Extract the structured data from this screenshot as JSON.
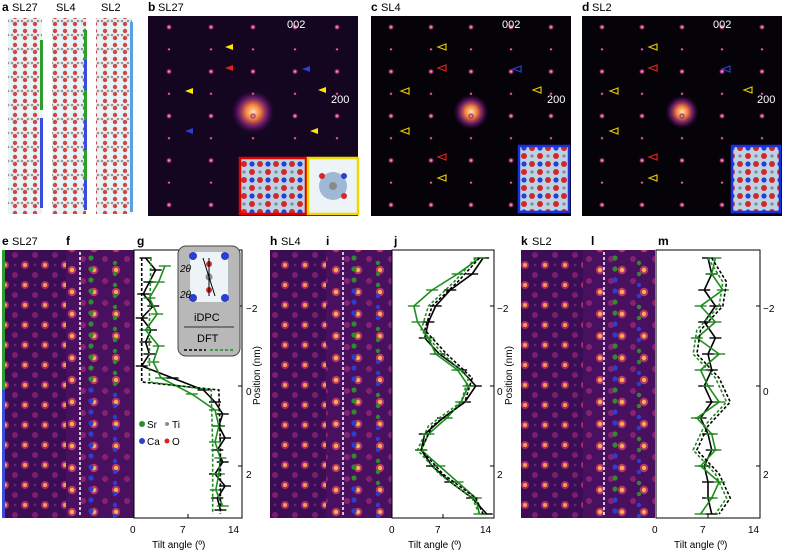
{
  "top_row": {
    "a": {
      "letter": "a",
      "models": [
        "SL27",
        "SL4",
        "SL2"
      ]
    },
    "b": {
      "letter": "b",
      "title": "SL27",
      "spot_002": "002",
      "spot_200": "200"
    },
    "c": {
      "letter": "c",
      "title": "SL4",
      "spot_002": "002",
      "spot_200": "200"
    },
    "d": {
      "letter": "d",
      "title": "SL2",
      "spot_002": "002",
      "spot_200": "200"
    }
  },
  "bottom_row": {
    "e": {
      "letter": "e",
      "title": "SL27"
    },
    "f": {
      "letter": "f"
    },
    "g": {
      "letter": "g"
    },
    "h": {
      "letter": "h",
      "title": "SL4"
    },
    "i": {
      "letter": "i"
    },
    "j": {
      "letter": "j"
    },
    "k": {
      "letter": "k",
      "title": "SL2"
    },
    "l": {
      "letter": "l"
    },
    "m": {
      "letter": "m"
    }
  },
  "inset": {
    "angle_label_1": "2θ",
    "angle_label_2": "2θ",
    "method_label": "iDPC",
    "dft_label": "DFT"
  },
  "legend_atoms": {
    "sr": "Sr",
    "ti": "Ti",
    "ca": "Ca",
    "o": "O",
    "colors": {
      "sr": "#2e8b2e",
      "ti": "#8c8c8c",
      "ca": "#2a3fd0",
      "o": "#e02020"
    }
  },
  "axes": {
    "y_label": "Position (nm)",
    "x_label": "Tilt angle (º)",
    "x_ticks": [
      "0",
      "7",
      "14"
    ],
    "y_ticks": [
      "−2",
      "0",
      "2"
    ]
  },
  "chart_data": [
    {
      "type": "line",
      "panel": "g",
      "xlabel": "Tilt angle (º)",
      "ylabel": "Position (nm)",
      "xlim": [
        0,
        14
      ],
      "ylim": [
        -3.4,
        3.3
      ],
      "series": [
        {
          "name": "iDPC",
          "color": "#000000",
          "style": "solid",
          "y": [
            -3.2,
            -2.9,
            -2.6,
            -2.3,
            -2.0,
            -1.7,
            -1.4,
            -1.1,
            -0.8,
            -0.5,
            -0.2,
            0.1,
            0.4,
            0.7,
            1.0,
            1.3,
            1.6,
            1.9,
            2.2,
            2.5,
            2.8,
            3.1
          ],
          "x": [
            1.5,
            2.8,
            2.0,
            1.2,
            2.5,
            1.0,
            2.2,
            1.5,
            2.0,
            1.0,
            5.0,
            9.0,
            10.5,
            11.5,
            11.0,
            11.8,
            10.8,
            11.5,
            10.5,
            11.8,
            10.8,
            11.2
          ]
        },
        {
          "name": "iDPC",
          "color": "#1e8c1e",
          "style": "solid",
          "y": [
            -3.0,
            -2.6,
            -2.2,
            -1.8,
            -1.4,
            -1.0,
            -0.6,
            -0.2,
            0.2,
            0.6,
            1.0,
            1.4,
            1.8,
            2.2,
            2.6,
            3.0
          ],
          "x": [
            4.0,
            3.2,
            2.0,
            3.0,
            1.5,
            3.2,
            2.5,
            3.5,
            7.5,
            10.5,
            11.0,
            10.5,
            11.2,
            11.0,
            10.6,
            11.5
          ]
        },
        {
          "name": "DFT",
          "color": "#000000",
          "style": "dashed",
          "y": [
            -3.2,
            -1.6,
            -0.1,
            0.1,
            1.5,
            3.2
          ],
          "x": [
            1.0,
            1.0,
            1.0,
            11.0,
            11.2,
            11.2
          ]
        },
        {
          "name": "DFT",
          "color": "#1e8c1e",
          "style": "dashed",
          "y": [
            -3.2,
            -1.6,
            -0.1,
            0.1,
            1.5,
            3.2
          ],
          "x": [
            2.2,
            2.0,
            2.0,
            10.0,
            10.2,
            10.2
          ]
        }
      ]
    },
    {
      "type": "line",
      "panel": "j",
      "xlabel": "Tilt angle (º)",
      "ylabel": "Position (nm)",
      "xlim": [
        0,
        14
      ],
      "ylim": [
        -3.4,
        3.3
      ],
      "series": [
        {
          "name": "iDPC",
          "color": "#000000",
          "style": "solid",
          "y": [
            -3.2,
            -2.8,
            -2.4,
            -2.0,
            -1.6,
            -1.2,
            -0.8,
            -0.4,
            0.0,
            0.4,
            0.8,
            1.2,
            1.6,
            2.0,
            2.4,
            2.8,
            3.2
          ],
          "x": [
            12.5,
            11.0,
            8.0,
            6.0,
            5.0,
            4.5,
            6.5,
            9.5,
            11.5,
            10.0,
            7.0,
            4.5,
            4.0,
            5.5,
            8.0,
            11.0,
            13.0
          ]
        },
        {
          "name": "iDPC",
          "color": "#1e8c1e",
          "style": "solid",
          "y": [
            -3.2,
            -2.8,
            -2.4,
            -2.0,
            -1.6,
            -1.2,
            -0.8,
            -0.4,
            0.0,
            0.4,
            0.8,
            1.2,
            1.6,
            2.0,
            2.4,
            2.8,
            3.2
          ],
          "x": [
            12.0,
            9.0,
            5.5,
            3.0,
            3.5,
            5.0,
            6.0,
            9.0,
            10.5,
            9.5,
            7.5,
            5.0,
            4.0,
            6.5,
            9.0,
            11.5,
            12.0
          ]
        },
        {
          "name": "DFT",
          "color": "#000000",
          "style": "dashed",
          "y": [
            -3.2,
            -2.6,
            -2.0,
            -1.4,
            -0.8,
            -0.2,
            0.4,
            1.0,
            1.6,
            2.2,
            2.8,
            3.2
          ],
          "x": [
            12.0,
            9.0,
            5.5,
            4.5,
            7.5,
            11.0,
            10.0,
            5.5,
            4.0,
            7.0,
            11.5,
            12.5
          ]
        },
        {
          "name": "DFT",
          "color": "#1e8c1e",
          "style": "dashed",
          "y": [
            -3.2,
            -2.6,
            -2.0,
            -1.4,
            -0.8,
            -0.2,
            0.4,
            1.0,
            1.6,
            2.2,
            2.8,
            3.2
          ],
          "x": [
            11.5,
            8.5,
            5.0,
            4.0,
            7.0,
            10.5,
            9.5,
            5.0,
            3.5,
            6.5,
            11.0,
            12.0
          ]
        }
      ]
    },
    {
      "type": "line",
      "panel": "m",
      "xlabel": "Tilt angle (º)",
      "ylabel": "Position (nm)",
      "xlim": [
        0,
        14
      ],
      "ylim": [
        -3.4,
        3.3
      ],
      "series": [
        {
          "name": "iDPC",
          "color": "#000000",
          "style": "solid",
          "y": [
            -3.2,
            -2.8,
            -2.4,
            -2.0,
            -1.6,
            -1.2,
            -0.8,
            -0.4,
            0.0,
            0.4,
            0.8,
            1.2,
            1.6,
            2.0,
            2.4,
            2.8,
            3.2
          ],
          "x": [
            7.0,
            7.5,
            6.5,
            8.0,
            6.5,
            8.0,
            7.0,
            7.5,
            6.5,
            7.5,
            6.0,
            7.0,
            7.5,
            6.5,
            7.0,
            7.0,
            7.5
          ]
        },
        {
          "name": "iDPC",
          "color": "#1e8c1e",
          "style": "solid",
          "y": [
            -3.2,
            -2.8,
            -2.4,
            -2.0,
            -1.6,
            -1.2,
            -0.8,
            -0.4,
            0.0,
            0.4,
            0.8,
            1.2,
            1.6,
            2.0,
            2.4,
            2.8,
            3.2
          ],
          "x": [
            8.0,
            7.5,
            9.0,
            6.0,
            8.0,
            5.5,
            8.5,
            6.0,
            7.0,
            8.5,
            5.5,
            7.5,
            8.0,
            6.0,
            8.5,
            7.5,
            6.0
          ]
        },
        {
          "name": "DFT",
          "color": "#000000",
          "style": "dashed",
          "y": [
            -3.2,
            -2.6,
            -2.0,
            -1.4,
            -0.8,
            -0.2,
            0.4,
            1.0,
            1.6,
            2.2,
            2.8,
            3.2
          ],
          "x": [
            7.5,
            9.5,
            9.0,
            6.0,
            5.5,
            8.5,
            10.0,
            7.0,
            5.5,
            8.5,
            10.0,
            8.5
          ]
        },
        {
          "name": "DFT",
          "color": "#1e8c1e",
          "style": "dashed",
          "y": [
            -3.2,
            -2.6,
            -2.0,
            -1.4,
            -0.8,
            -0.2,
            0.4,
            1.0,
            1.6,
            2.2,
            2.8,
            3.2
          ],
          "x": [
            7.0,
            9.0,
            8.5,
            5.5,
            5.0,
            8.0,
            9.5,
            6.5,
            5.0,
            8.0,
            9.5,
            8.0
          ]
        }
      ]
    }
  ]
}
